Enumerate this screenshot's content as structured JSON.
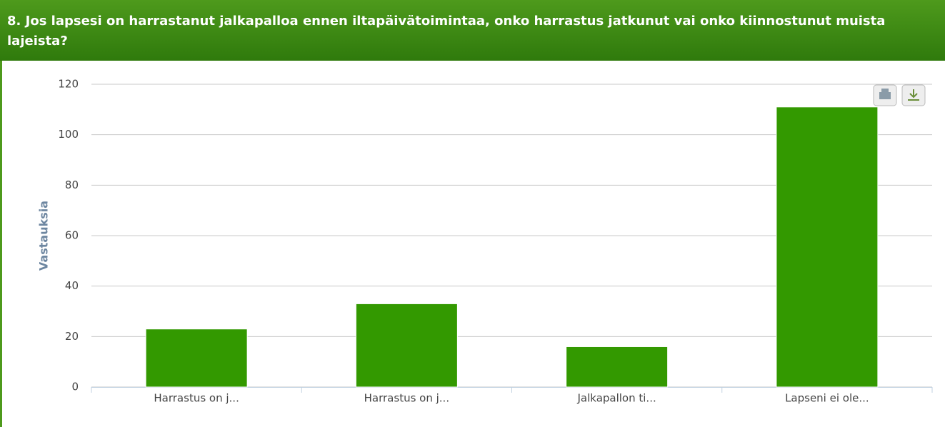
{
  "chart_data": {
    "type": "bar",
    "title": "8. Jos lapsesi on harrastanut jalkapalloa ennen iltapäivätoimintaa, onko harrastus jatkunut vai onko kiinnostunut muista lajeista?",
    "y_label": "Vastauksia",
    "categories": [
      "Harrastus on j...",
      "Harrastus on j...",
      "Jalkapallon ti...",
      "Lapseni ei ole..."
    ],
    "values": [
      23,
      33,
      16,
      111
    ],
    "color": "#339900",
    "ylim": [
      0,
      120
    ],
    "yticks": [
      0,
      20,
      40,
      60,
      80,
      100,
      120
    ],
    "grid": true
  }
}
